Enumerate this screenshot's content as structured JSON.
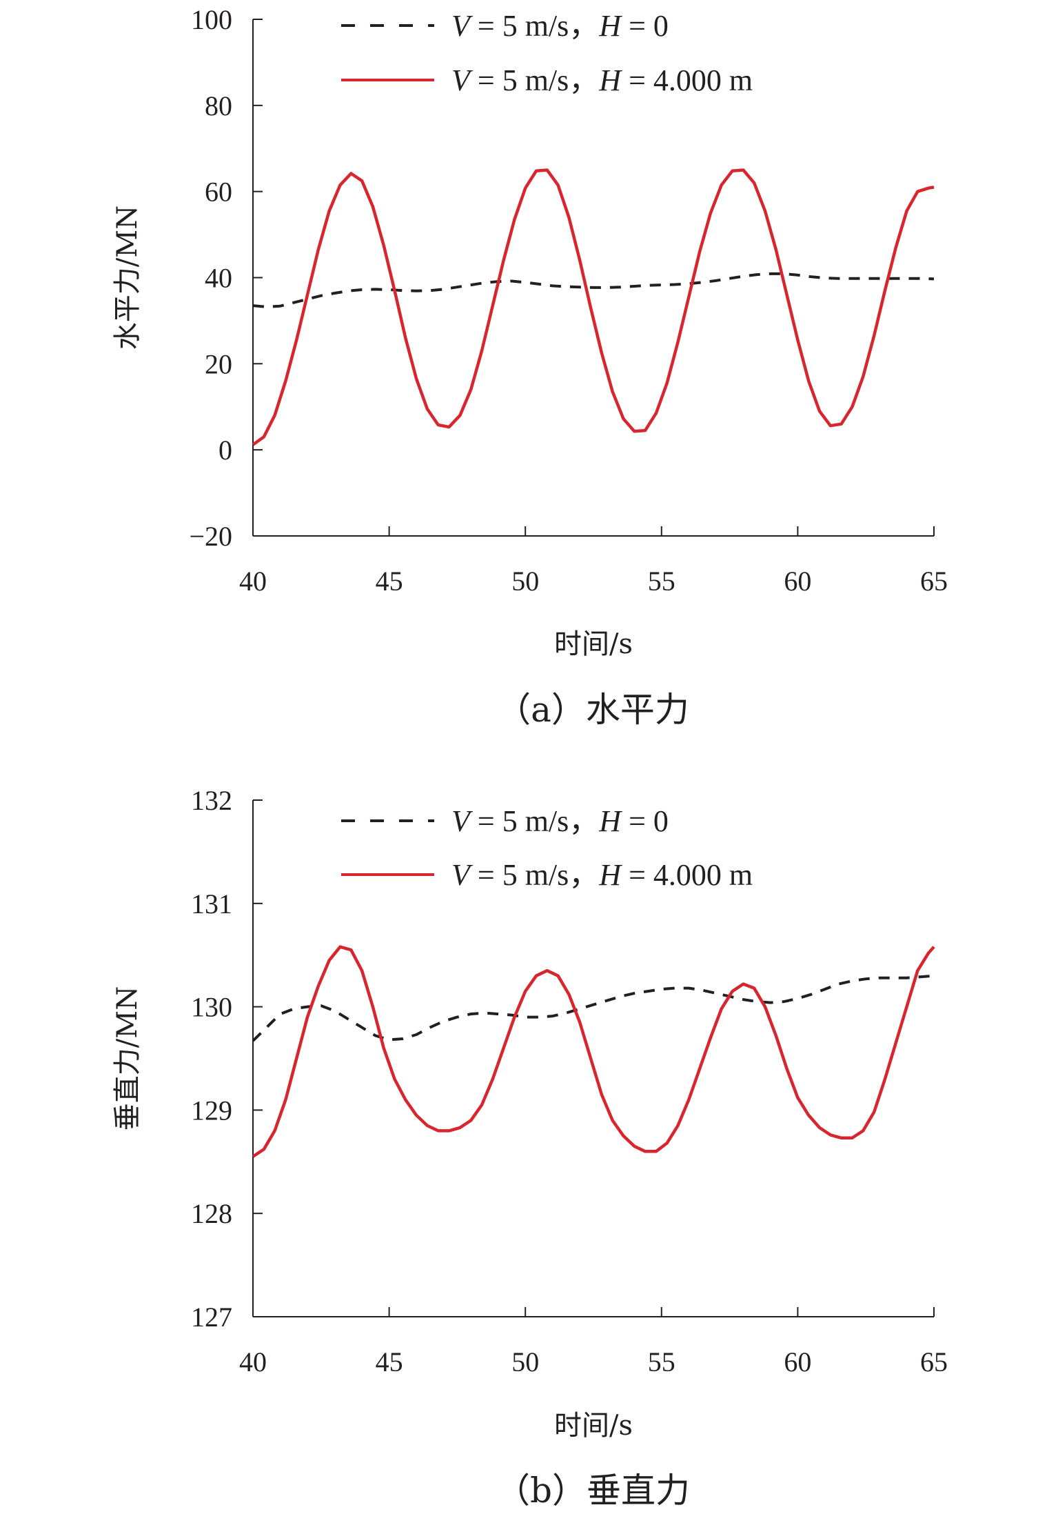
{
  "chart_data": [
    {
      "type": "line",
      "caption": "（a）水平力",
      "xlabel": "时间/s",
      "ylabel": "水平力/MN",
      "xlim": [
        40,
        65
      ],
      "ylim": [
        -20,
        100
      ],
      "xticks": [
        40,
        45,
        50,
        55,
        60,
        65
      ],
      "yticks": [
        -20,
        0,
        20,
        40,
        60,
        80,
        100
      ],
      "ytick_labels": [
        "−20",
        "0",
        "20",
        "40",
        "60",
        "80",
        "100"
      ],
      "grid": false,
      "legend_position": "top",
      "series": [
        {
          "name_var": "V",
          "name_text": " = 5 m/s，",
          "name_var2": "H",
          "name_text2": " = 0",
          "style": "dashed",
          "color": "#231f20",
          "x": [
            40,
            40.5,
            41,
            41.5,
            42,
            42.5,
            43,
            43.5,
            44,
            44.5,
            45,
            45.5,
            46,
            46.5,
            47,
            47.5,
            48,
            48.5,
            49,
            49.5,
            50,
            50.5,
            51,
            51.5,
            52,
            52.5,
            53,
            53.5,
            54,
            54.5,
            55,
            55.5,
            56,
            56.5,
            57,
            57.5,
            58,
            58.5,
            59,
            59.5,
            60,
            60.5,
            61,
            61.5,
            62,
            62.5,
            63,
            63.5,
            64,
            64.5,
            65
          ],
          "y": [
            33.5,
            33.2,
            33.4,
            34.2,
            35.0,
            35.8,
            36.4,
            36.9,
            37.2,
            37.3,
            37.2,
            37.0,
            36.9,
            37.0,
            37.3,
            37.8,
            38.3,
            38.8,
            39.1,
            39.2,
            38.9,
            38.5,
            38.1,
            37.9,
            37.8,
            37.7,
            37.7,
            37.8,
            38.0,
            38.2,
            38.3,
            38.4,
            38.6,
            38.9,
            39.3,
            39.8,
            40.3,
            40.7,
            40.9,
            40.9,
            40.6,
            40.2,
            39.9,
            39.8,
            39.8,
            39.8,
            39.8,
            39.8,
            39.8,
            39.8,
            39.7
          ]
        },
        {
          "name_var": "V",
          "name_text": " = 5 m/s，",
          "name_var2": "H",
          "name_text2": " = 4.000 m",
          "style": "solid",
          "color": "#d7262e",
          "x": [
            40,
            40.4,
            40.8,
            41.2,
            41.6,
            42,
            42.4,
            42.8,
            43.2,
            43.6,
            44,
            44.4,
            44.8,
            45.2,
            45.6,
            46,
            46.4,
            46.8,
            47.2,
            47.6,
            48,
            48.4,
            48.8,
            49.2,
            49.6,
            50,
            50.4,
            50.8,
            51.2,
            51.6,
            52,
            52.4,
            52.8,
            53.2,
            53.6,
            54,
            54.4,
            54.8,
            55.2,
            55.6,
            56,
            56.4,
            56.8,
            57.2,
            57.6,
            58,
            58.4,
            58.8,
            59.2,
            59.6,
            60,
            60.4,
            60.8,
            61.2,
            61.6,
            62,
            62.4,
            62.8,
            63.2,
            63.6,
            64,
            64.4,
            64.8,
            65
          ],
          "y": [
            1.2,
            3.0,
            8.0,
            16.0,
            25.5,
            36.0,
            46.5,
            55.5,
            61.5,
            64.2,
            62.5,
            56.5,
            47.5,
            37.0,
            26.0,
            16.5,
            9.5,
            5.8,
            5.3,
            8.0,
            14.0,
            23.0,
            33.5,
            44.0,
            53.5,
            60.8,
            64.8,
            65.0,
            61.5,
            54.0,
            44.0,
            33.0,
            22.5,
            13.5,
            7.2,
            4.3,
            4.5,
            8.5,
            15.5,
            25.0,
            35.5,
            46.0,
            55.0,
            61.5,
            64.8,
            65.0,
            62.0,
            55.5,
            46.5,
            36.0,
            25.5,
            16.0,
            9.0,
            5.6,
            6.0,
            10.0,
            17.0,
            26.5,
            37.0,
            47.0,
            55.5,
            60.0,
            60.8,
            61.0
          ]
        }
      ]
    },
    {
      "type": "line",
      "caption": "（b）垂直力",
      "xlabel": "时间/s",
      "ylabel": "垂直力/MN",
      "xlim": [
        40,
        65
      ],
      "ylim": [
        127,
        132
      ],
      "xticks": [
        40,
        45,
        50,
        55,
        60,
        65
      ],
      "yticks": [
        127,
        128,
        129,
        130,
        131,
        132
      ],
      "ytick_labels": [
        "127",
        "128",
        "129",
        "130",
        "131",
        "132"
      ],
      "grid": false,
      "legend_position": "top",
      "series": [
        {
          "name_var": "V",
          "name_text": " = 5 m/s，",
          "name_var2": "H",
          "name_text2": " = 0",
          "style": "dashed",
          "color": "#231f20",
          "x": [
            40,
            40.5,
            41,
            41.5,
            42,
            42.5,
            43,
            43.5,
            44,
            44.5,
            45,
            45.5,
            46,
            46.5,
            47,
            47.5,
            48,
            48.5,
            49,
            49.5,
            50,
            50.5,
            51,
            51.5,
            52,
            52.5,
            53,
            53.5,
            54,
            54.5,
            55,
            55.5,
            56,
            56.5,
            57,
            57.5,
            58,
            58.5,
            59,
            59.5,
            60,
            60.5,
            61,
            61.5,
            62,
            62.5,
            63,
            63.5,
            64,
            64.5,
            65
          ],
          "y": [
            129.67,
            129.8,
            129.93,
            129.98,
            130.0,
            130.01,
            129.96,
            129.88,
            129.8,
            129.72,
            129.68,
            129.69,
            129.73,
            129.8,
            129.86,
            129.9,
            129.93,
            129.94,
            129.93,
            129.92,
            129.9,
            129.9,
            129.91,
            129.94,
            129.98,
            130.02,
            130.06,
            130.1,
            130.13,
            130.15,
            130.17,
            130.18,
            130.18,
            130.16,
            130.13,
            130.1,
            130.07,
            130.05,
            130.04,
            130.05,
            130.08,
            130.12,
            130.17,
            130.22,
            130.25,
            130.27,
            130.28,
            130.28,
            130.28,
            130.29,
            130.3
          ]
        },
        {
          "name_var": "V",
          "name_text": " = 5 m/s，",
          "name_var2": "H",
          "name_text2": " = 4.000 m",
          "style": "solid",
          "color": "#d7262e",
          "x": [
            40,
            40.4,
            40.8,
            41.2,
            41.6,
            42,
            42.4,
            42.8,
            43.2,
            43.6,
            44,
            44.4,
            44.8,
            45.2,
            45.6,
            46,
            46.4,
            46.8,
            47.2,
            47.6,
            48,
            48.4,
            48.8,
            49.2,
            49.6,
            50,
            50.4,
            50.8,
            51.2,
            51.6,
            52,
            52.4,
            52.8,
            53.2,
            53.6,
            54,
            54.4,
            54.8,
            55.2,
            55.6,
            56,
            56.4,
            56.8,
            57.2,
            57.6,
            58,
            58.4,
            58.8,
            59.2,
            59.6,
            60,
            60.4,
            60.8,
            61.2,
            61.6,
            62,
            62.4,
            62.8,
            63.2,
            63.6,
            64,
            64.4,
            64.8,
            65
          ],
          "y": [
            128.55,
            128.62,
            128.8,
            129.1,
            129.5,
            129.9,
            130.2,
            130.45,
            130.58,
            130.55,
            130.35,
            130.0,
            129.6,
            129.3,
            129.1,
            128.95,
            128.85,
            128.8,
            128.8,
            128.83,
            128.9,
            129.05,
            129.3,
            129.6,
            129.9,
            130.15,
            130.3,
            130.35,
            130.3,
            130.12,
            129.85,
            129.5,
            129.15,
            128.9,
            128.75,
            128.65,
            128.6,
            128.6,
            128.68,
            128.85,
            129.1,
            129.4,
            129.7,
            129.98,
            130.15,
            130.22,
            130.18,
            130.0,
            129.72,
            129.4,
            129.12,
            128.95,
            128.83,
            128.76,
            128.73,
            128.73,
            128.8,
            128.98,
            129.3,
            129.65,
            130.0,
            130.35,
            130.52,
            130.58
          ]
        }
      ]
    }
  ]
}
